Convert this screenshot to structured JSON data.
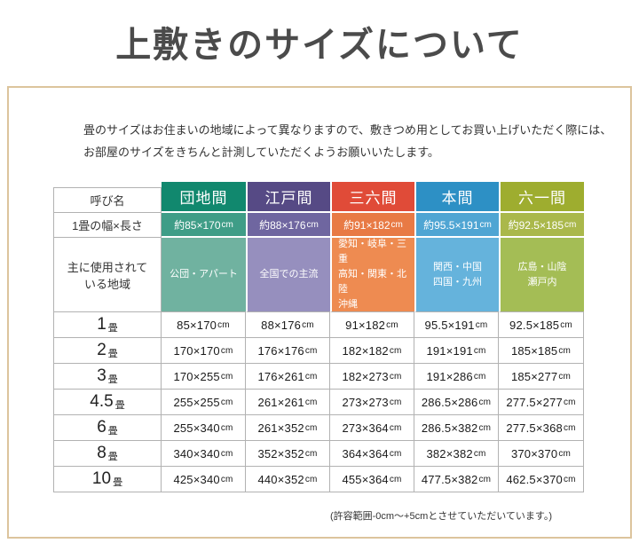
{
  "title": "上敷きのサイズについて",
  "intro": {
    "line1": "畳のサイズはお住まいの地域によって異なりますので、敷きつめ用としてお買い上げいただく際には、",
    "line2": "お部屋のサイズをきちんと計測していただくようお願いいたします。"
  },
  "table": {
    "corner_label": "呼び名",
    "size_row_label": "1畳の幅×長さ",
    "region_row_label": [
      "主に使用されて",
      "いる地域"
    ],
    "columns": [
      {
        "name": "団地間",
        "size": "約85×170cm",
        "regions": [
          "公団・アパート"
        ],
        "colors": {
          "header": "#11886e",
          "size": "#3f9d87",
          "region": "#70b2a0"
        }
      },
      {
        "name": "江戸間",
        "size": "約88×176cm",
        "regions": [
          "全国での主流"
        ],
        "colors": {
          "header": "#564a85",
          "size": "#6f66a0",
          "region": "#968fbe"
        }
      },
      {
        "name": "三六間",
        "size": "約91×182cm",
        "regions": [
          "愛知・岐阜・三重",
          "高知・関東・北陸",
          "沖縄"
        ],
        "colors": {
          "header": "#e04b38",
          "size": "#e87a45",
          "region": "#ee8b51"
        }
      },
      {
        "name": "本間",
        "size": "約95.5×191cm",
        "regions": [
          "関西・中国",
          "四国・九州"
        ],
        "colors": {
          "header": "#2d90c5",
          "size": "#4fa5d3",
          "region": "#65b3dc"
        }
      },
      {
        "name": "六一間",
        "size": "約92.5×185cm",
        "regions": [
          "広島・山陰",
          "瀬戸内"
        ],
        "colors": {
          "header": "#9ead2f",
          "size": "#aab84b",
          "region": "#a4bd55"
        }
      }
    ],
    "mat_rows": [
      {
        "label": "1",
        "suffix": "畳",
        "values": [
          "85×170cm",
          "88×176cm",
          "91×182cm",
          "95.5×191cm",
          "92.5×185cm"
        ]
      },
      {
        "label": "2",
        "suffix": "畳",
        "values": [
          "170×170cm",
          "176×176cm",
          "182×182cm",
          "191×191cm",
          "185×185cm"
        ]
      },
      {
        "label": "3",
        "suffix": "畳",
        "values": [
          "170×255cm",
          "176×261cm",
          "182×273cm",
          "191×286cm",
          "185×277cm"
        ]
      },
      {
        "label": "4.5",
        "suffix": "畳",
        "values": [
          "255×255cm",
          "261×261cm",
          "273×273cm",
          "286.5×286cm",
          "277.5×277cm"
        ]
      },
      {
        "label": "6",
        "suffix": "畳",
        "values": [
          "255×340cm",
          "261×352cm",
          "273×364cm",
          "286.5×382cm",
          "277.5×368cm"
        ]
      },
      {
        "label": "8",
        "suffix": "畳",
        "values": [
          "340×340cm",
          "352×352cm",
          "364×364cm",
          "382×382cm",
          "370×370cm"
        ]
      },
      {
        "label": "10",
        "suffix": "畳",
        "values": [
          "425×340cm",
          "440×352cm",
          "455×364cm",
          "477.5×382cm",
          "462.5×370cm"
        ]
      }
    ]
  },
  "note": "(許容範囲-0cm～+5cmとさせていただいています。)",
  "colors": {
    "panel_border": "#dcc49d",
    "grid_line": "#b2b2b2",
    "title_text": "#4b4b4b"
  }
}
